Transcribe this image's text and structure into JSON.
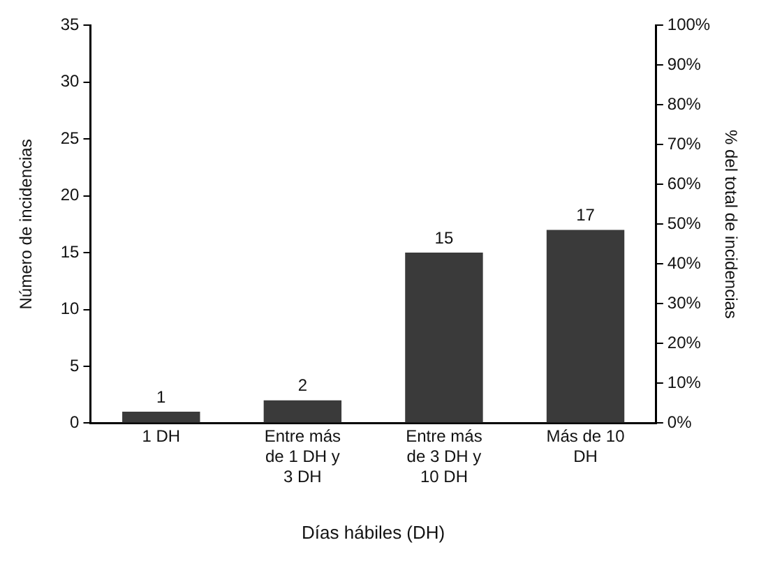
{
  "chart_data": {
    "type": "bar",
    "xlabel": "Días hábiles (DH)",
    "ylabel": "Número de incidencias",
    "y2label": "% del total de incidencias",
    "categories": [
      "1 DH",
      "Entre más de 1 DH y 3 DH",
      "Entre más de 3 DH y 10 DH",
      "Más de 10 DH"
    ],
    "values": [
      1,
      2,
      15,
      17
    ],
    "color": "#3a3a3a",
    "ylim": [
      0,
      35
    ],
    "yticks": [
      0,
      5,
      10,
      15,
      20,
      25,
      30,
      35
    ],
    "y2lim": [
      0,
      100
    ],
    "y2ticks": [
      {
        "value": 0,
        "label": "0%"
      },
      {
        "value": 10,
        "label": "10%"
      },
      {
        "value": 20,
        "label": "20%"
      },
      {
        "value": 30,
        "label": "30%"
      },
      {
        "value": 40,
        "label": "40%"
      },
      {
        "value": 50,
        "label": "50%"
      },
      {
        "value": 60,
        "label": "60%"
      },
      {
        "value": 70,
        "label": "70%"
      },
      {
        "value": 80,
        "label": "80%"
      },
      {
        "value": 90,
        "label": "90%"
      },
      {
        "value": 100,
        "label": "100%"
      }
    ],
    "data_labels": true,
    "grid": false,
    "legend": false
  }
}
